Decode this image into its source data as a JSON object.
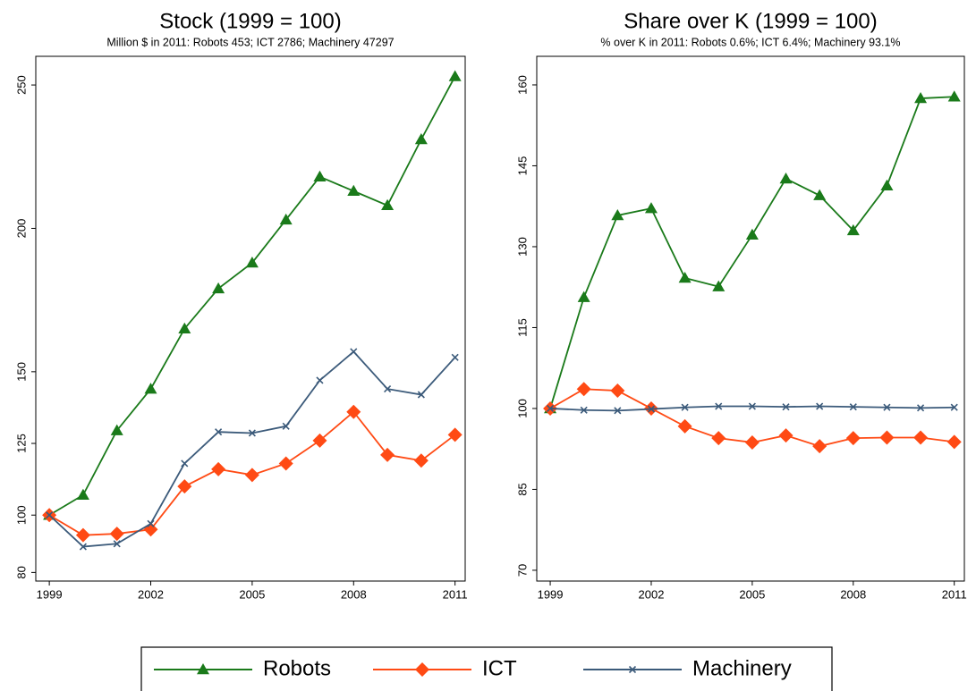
{
  "chart_data": [
    {
      "type": "line",
      "title": "Stock (1999 = 100)",
      "subtitle": "Million $ in 2011: Robots 453; ICT 2786; Machinery 47297",
      "x": [
        1999,
        2000,
        2001,
        2002,
        2003,
        2004,
        2005,
        2006,
        2007,
        2008,
        2009,
        2010,
        2011
      ],
      "xlim": [
        1998.6,
        2011.3
      ],
      "xticks": [
        1999,
        2002,
        2005,
        2008,
        2011
      ],
      "ylim": [
        77,
        260
      ],
      "yticks": [
        80,
        100,
        125,
        150,
        200,
        250
      ],
      "legend": "bottom",
      "series": [
        {
          "name": "Robots",
          "color": "#1a7a1a",
          "marker": "triangle",
          "values": [
            100,
            107,
            129.5,
            144,
            165,
            179,
            188,
            203,
            218,
            213,
            208,
            231,
            253
          ]
        },
        {
          "name": "ICT",
          "color": "#ff4a14",
          "marker": "diamond",
          "values": [
            100,
            93,
            93.5,
            95,
            110,
            116,
            114,
            118,
            126,
            136,
            121,
            119,
            128
          ]
        },
        {
          "name": "Machinery",
          "color": "#3b5a7a",
          "marker": "x",
          "values": [
            100,
            89,
            90,
            97,
            118,
            129,
            128.6,
            131,
            147,
            157,
            144,
            142,
            155
          ]
        }
      ]
    },
    {
      "type": "line",
      "title": "Share over K (1999 = 100)",
      "subtitle": "% over K in 2011: Robots 0.6%; ICT 6.4%; Machinery 93.1%",
      "x": [
        1999,
        2000,
        2001,
        2002,
        2003,
        2004,
        2005,
        2006,
        2007,
        2008,
        2009,
        2010,
        2011
      ],
      "xlim": [
        1998.6,
        2011.3
      ],
      "xticks": [
        1999,
        2002,
        2005,
        2008,
        2011
      ],
      "ylim": [
        68,
        165.3
      ],
      "yticks": [
        70,
        85,
        100,
        115,
        130,
        145,
        160
      ],
      "series": [
        {
          "name": "Robots",
          "color": "#1a7a1a",
          "marker": "triangle",
          "values": [
            100,
            120.6,
            135.8,
            137.1,
            124.2,
            122.6,
            132.2,
            142.6,
            139.5,
            133,
            141.3,
            157.5,
            157.8
          ]
        },
        {
          "name": "ICT",
          "color": "#ff4a14",
          "marker": "diamond",
          "values": [
            100,
            103.6,
            103.3,
            100,
            96.7,
            94.5,
            93.7,
            95,
            93,
            94.5,
            94.6,
            94.6,
            93.8
          ]
        },
        {
          "name": "Machinery",
          "color": "#3b5a7a",
          "marker": "x",
          "values": [
            100,
            99.7,
            99.6,
            99.9,
            100.2,
            100.4,
            100.4,
            100.3,
            100.4,
            100.3,
            100.2,
            100.1,
            100.2
          ]
        }
      ]
    }
  ]
}
